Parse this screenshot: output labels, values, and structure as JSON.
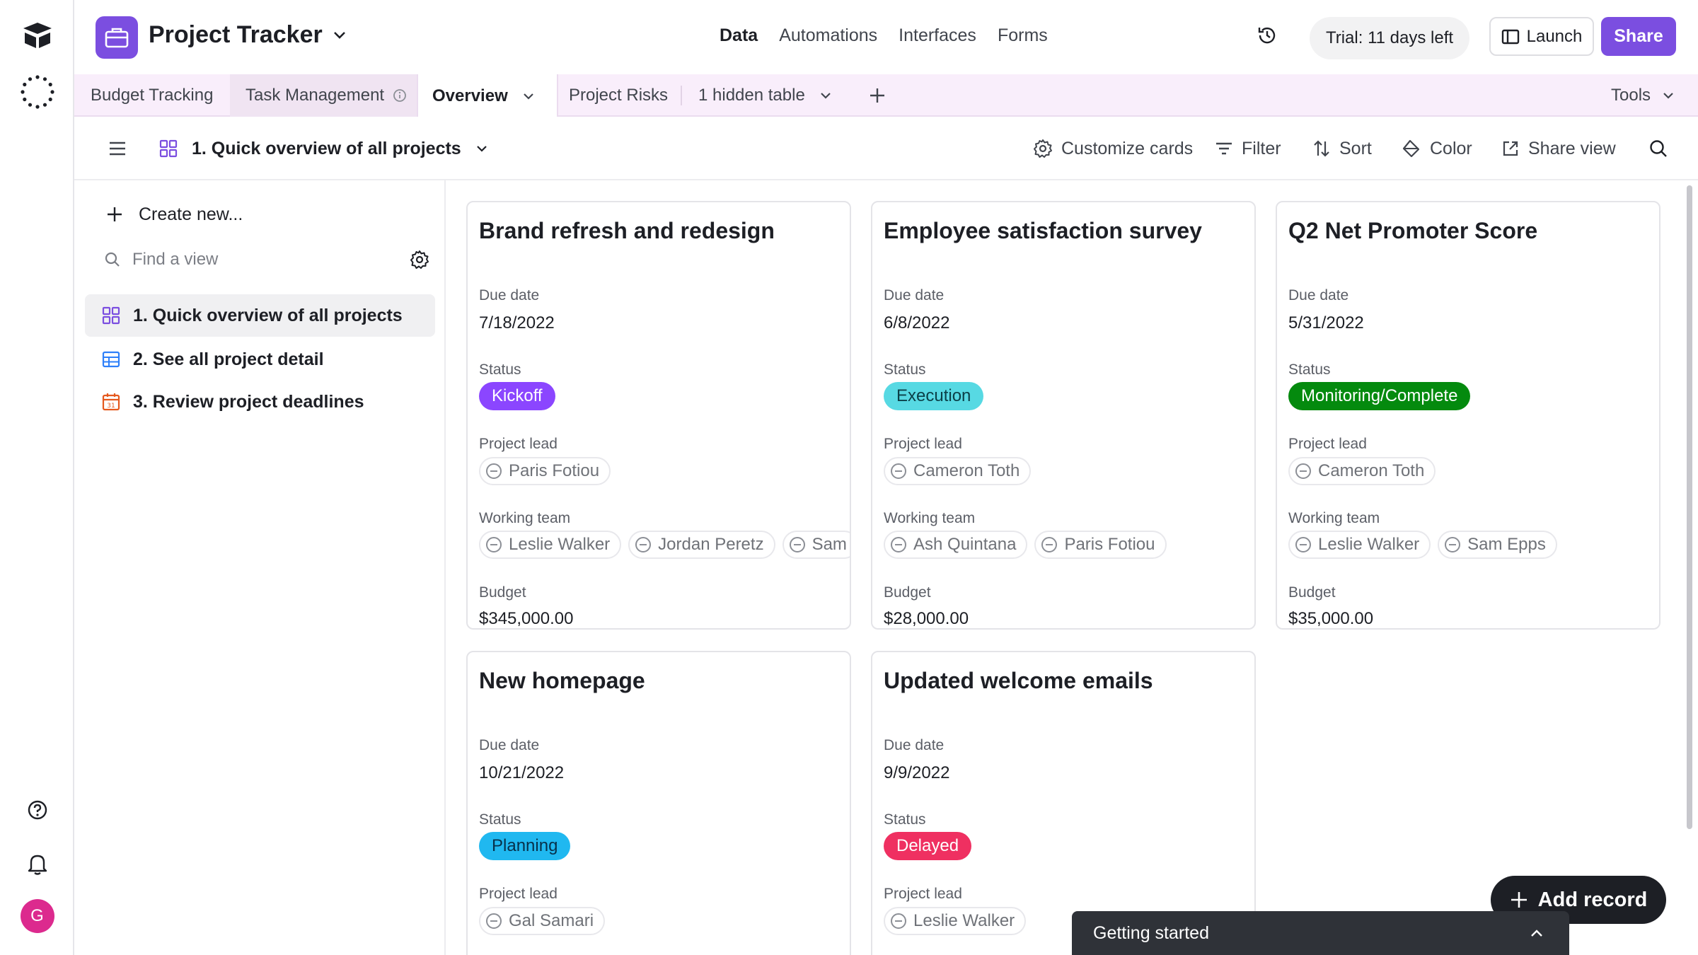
{
  "colors": {
    "brand": "#7b4ee0",
    "kickoff": "#8b46ff",
    "execution": "#57d9e3",
    "monitoring": "#048a0e",
    "planning": "#20b8f0",
    "delayed": "#ef3061"
  },
  "app": {
    "title": "Project Tracker",
    "nav": [
      "Data",
      "Automations",
      "Interfaces",
      "Forms"
    ],
    "trial": "Trial: 11 days left",
    "launch": "Launch",
    "share": "Share",
    "avatar_letter": "G"
  },
  "tabs": {
    "items": [
      "Budget Tracking",
      "Task Management",
      "Overview",
      "Project Risks"
    ],
    "hidden": "1 hidden table",
    "tools": "Tools"
  },
  "viewbar": {
    "view_name": "1. Quick overview of all projects",
    "customize": "Customize cards",
    "filter": "Filter",
    "sort": "Sort",
    "color": "Color",
    "share_view": "Share view"
  },
  "sidebar": {
    "create": "Create new...",
    "find_placeholder": "Find a view",
    "views": [
      "1. Quick overview of all projects",
      "2. See all project detail",
      "3. Review project deadlines"
    ]
  },
  "field_labels": {
    "due": "Due date",
    "status": "Status",
    "lead": "Project lead",
    "team": "Working team",
    "budget": "Budget"
  },
  "cards": [
    {
      "title": "Brand refresh and redesign",
      "due": "7/18/2022",
      "status": "Kickoff",
      "lead": "Paris Fotiou",
      "team": [
        "Leslie Walker",
        "Jordan Peretz",
        "Sam"
      ],
      "budget": "$345,000.00"
    },
    {
      "title": "Employee satisfaction survey",
      "due": "6/8/2022",
      "status": "Execution",
      "lead": "Cameron Toth",
      "team": [
        "Ash Quintana",
        "Paris Fotiou"
      ],
      "budget": "$28,000.00"
    },
    {
      "title": "Q2 Net Promoter Score",
      "due": "5/31/2022",
      "status": "Monitoring/Complete",
      "lead": "Cameron Toth",
      "team": [
        "Leslie Walker",
        "Sam Epps"
      ],
      "budget": "$35,000.00"
    },
    {
      "title": "New homepage",
      "due": "10/21/2022",
      "status": "Planning",
      "lead": "Gal Samari"
    },
    {
      "title": "Updated welcome emails",
      "due": "9/9/2022",
      "status": "Delayed",
      "lead": "Leslie Walker"
    }
  ],
  "actions": {
    "add_record": "Add record",
    "getting_started": "Getting started"
  }
}
